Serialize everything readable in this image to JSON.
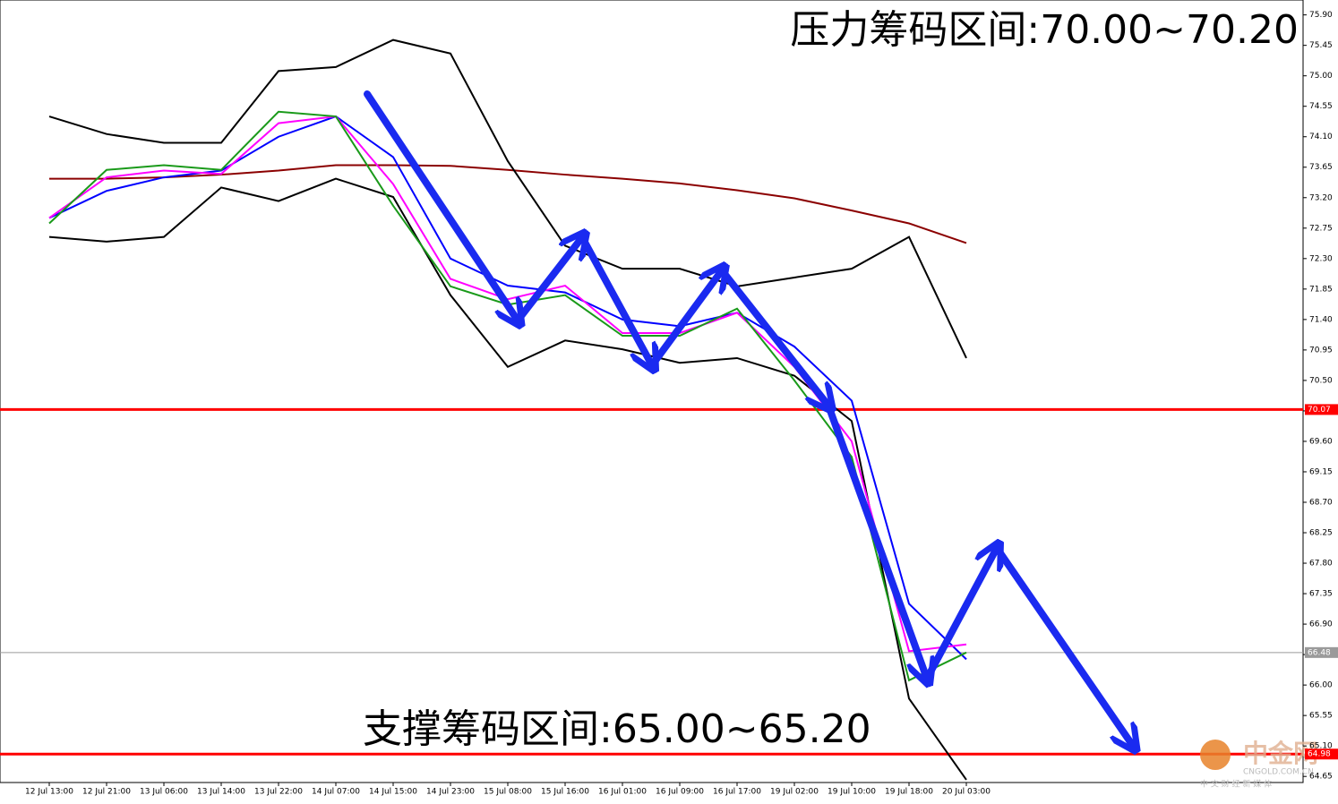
{
  "chart_data": {
    "type": "line",
    "annotations": [
      "压力筹码区间:70.00~70.20",
      "支撑筹码区间:65.00~65.20"
    ],
    "watermark": [
      "中金网",
      "CNGOLD.COM.CN",
      "中 文 财 经 新 媒 体"
    ],
    "categories": [
      "12 Jul 13:00",
      "12 Jul 21:00",
      "13 Jul 06:00",
      "13 Jul 14:00",
      "13 Jul 22:00",
      "14 Jul 07:00",
      "14 Jul 15:00",
      "14 Jul 23:00",
      "15 Jul 08:00",
      "15 Jul 16:00",
      "16 Jul 01:00",
      "16 Jul 09:00",
      "16 Jul 17:00",
      "19 Jul 02:00",
      "19 Jul 10:00",
      "19 Jul 18:00",
      "20 Jul 03:00"
    ],
    "series": [
      {
        "color": "#8b0000",
        "values": [
          73.48,
          73.48,
          73.5,
          73.54,
          73.6,
          73.68,
          73.68,
          73.67,
          73.61,
          73.54,
          73.48,
          73.41,
          73.31,
          73.19,
          73.01,
          72.82,
          72.53
        ]
      },
      {
        "color": "#000000",
        "values": [
          74.4,
          74.14,
          74.01,
          74.01,
          75.07,
          75.13,
          75.53,
          75.33,
          73.74,
          72.49,
          72.15,
          72.15,
          71.89,
          72.02,
          72.15,
          72.62,
          70.83
        ]
      },
      {
        "color": "#000000",
        "values": [
          72.62,
          72.55,
          72.62,
          73.35,
          73.15,
          73.48,
          73.21,
          71.76,
          70.7,
          71.09,
          70.96,
          70.76,
          70.83,
          70.57,
          69.9,
          65.8,
          64.6
        ]
      },
      {
        "color": "#0000ff",
        "values": [
          72.9,
          73.3,
          73.5,
          73.6,
          74.1,
          74.4,
          73.8,
          72.3,
          71.9,
          71.8,
          71.4,
          71.3,
          71.5,
          71.0,
          70.2,
          67.2,
          66.38
        ]
      },
      {
        "color": "#ff00ff",
        "values": [
          72.9,
          73.5,
          73.6,
          73.55,
          74.3,
          74.4,
          73.4,
          72.0,
          71.7,
          71.9,
          71.2,
          71.2,
          71.5,
          70.7,
          69.6,
          66.5,
          66.6
        ]
      },
      {
        "color": "#1a9a1a",
        "values": [
          72.82,
          73.61,
          73.68,
          73.61,
          74.47,
          74.4,
          73.08,
          71.89,
          71.62,
          71.76,
          71.16,
          71.16,
          71.56,
          70.5,
          69.37,
          66.07,
          66.48
        ]
      }
    ],
    "hlines": [
      {
        "value": 70.07,
        "color": "#ff0000"
      },
      {
        "value": 64.98,
        "color": "#ff0000"
      },
      {
        "value": 66.48,
        "color": "#9a9a9a"
      }
    ],
    "ylim": [
      64.56,
      76.12
    ],
    "yticks": [
      {
        "value": 75.9,
        "label": "75.90"
      },
      75.45,
      {
        "value": 75.0,
        "label": "75.00"
      },
      74.55,
      {
        "value": 74.1,
        "label": "74.10"
      },
      73.65,
      {
        "value": 73.2,
        "label": "73.20"
      },
      72.75,
      {
        "value": 72.3,
        "label": "72.30"
      },
      71.85,
      {
        "value": 71.4,
        "label": "71.40"
      },
      70.95,
      {
        "value": 70.5,
        "label": "70.50"
      },
      70.05,
      {
        "value": 69.6,
        "label": "69.60"
      },
      69.15,
      {
        "value": 68.7,
        "label": "68.70"
      },
      68.25,
      {
        "value": 67.8,
        "label": "67.80"
      },
      67.35,
      {
        "value": 66.9,
        "label": "66.90"
      },
      66.45,
      {
        "value": 66.0,
        "label": "66.00"
      },
      65.55,
      {
        "value": 65.1,
        "label": "65.10"
      },
      64.65
    ],
    "grid": false
  }
}
